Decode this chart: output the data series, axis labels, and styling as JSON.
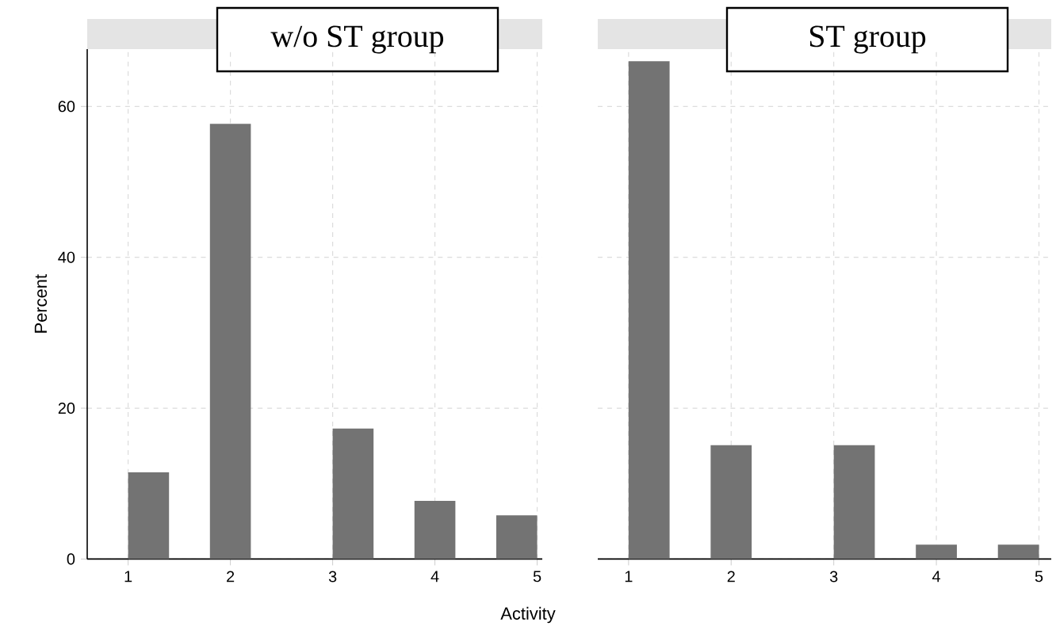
{
  "chart_data": [
    {
      "type": "histogram",
      "title": "w/o ST group",
      "xlabel": "Activity",
      "ylabel": "Percent",
      "bins": [
        1,
        1.4,
        1.8,
        2.2,
        2.6,
        3,
        3.4,
        3.8,
        4.2,
        4.6,
        5
      ],
      "values": [
        11.5,
        0,
        57.7,
        0,
        0,
        17.3,
        0,
        7.7,
        0,
        5.8
      ],
      "color": "#737373",
      "xlim": [
        0.6,
        5.05
      ],
      "ylim": [
        0,
        67.6
      ],
      "xticks": [
        1,
        2,
        3,
        4,
        5
      ],
      "yticks": [
        0,
        20,
        40,
        60
      ],
      "grid": true
    },
    {
      "type": "histogram",
      "title": "ST group",
      "bins": [
        1,
        1.4,
        1.8,
        2.2,
        2.6,
        3,
        3.4,
        3.8,
        4.2,
        4.6,
        5
      ],
      "values": [
        66,
        0,
        15.1,
        0,
        0,
        15.1,
        0,
        1.9,
        0,
        1.9
      ],
      "color": "#737373",
      "xlim": [
        0.7,
        5.12
      ],
      "ylim": [
        0,
        67.6
      ],
      "xticks": [
        1,
        2,
        3,
        4,
        5
      ],
      "yticks": [
        0,
        20,
        40,
        60
      ],
      "grid": true,
      "tick_labels": "x"
    }
  ]
}
